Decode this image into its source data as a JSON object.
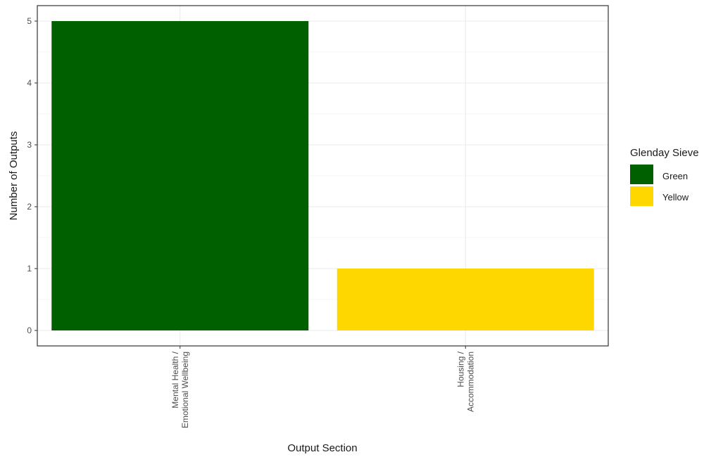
{
  "chart_data": {
    "type": "bar",
    "categories": [
      [
        "Mental Health /",
        "Emotional Wellbeing"
      ],
      [
        "Housing /",
        "Accommodation"
      ]
    ],
    "values": [
      5,
      1
    ],
    "fill": [
      "Green",
      "Yellow"
    ],
    "xlabel": "Output Section",
    "ylabel": "Number of Outputs",
    "ylim": [
      -0.25,
      5.25
    ],
    "yticks": [
      "0",
      "1",
      "2",
      "3",
      "4",
      "5"
    ],
    "grid": true,
    "legend": {
      "title": "Glenday Sieve",
      "position": "right",
      "entries": [
        {
          "label": "Green",
          "color": "#006000"
        },
        {
          "label": "Yellow",
          "color": "#FFD700"
        }
      ]
    }
  },
  "colors": {
    "Green": "#006000",
    "Yellow": "#FFD700",
    "grid": "#ebebeb",
    "panel_border": "#333333"
  }
}
